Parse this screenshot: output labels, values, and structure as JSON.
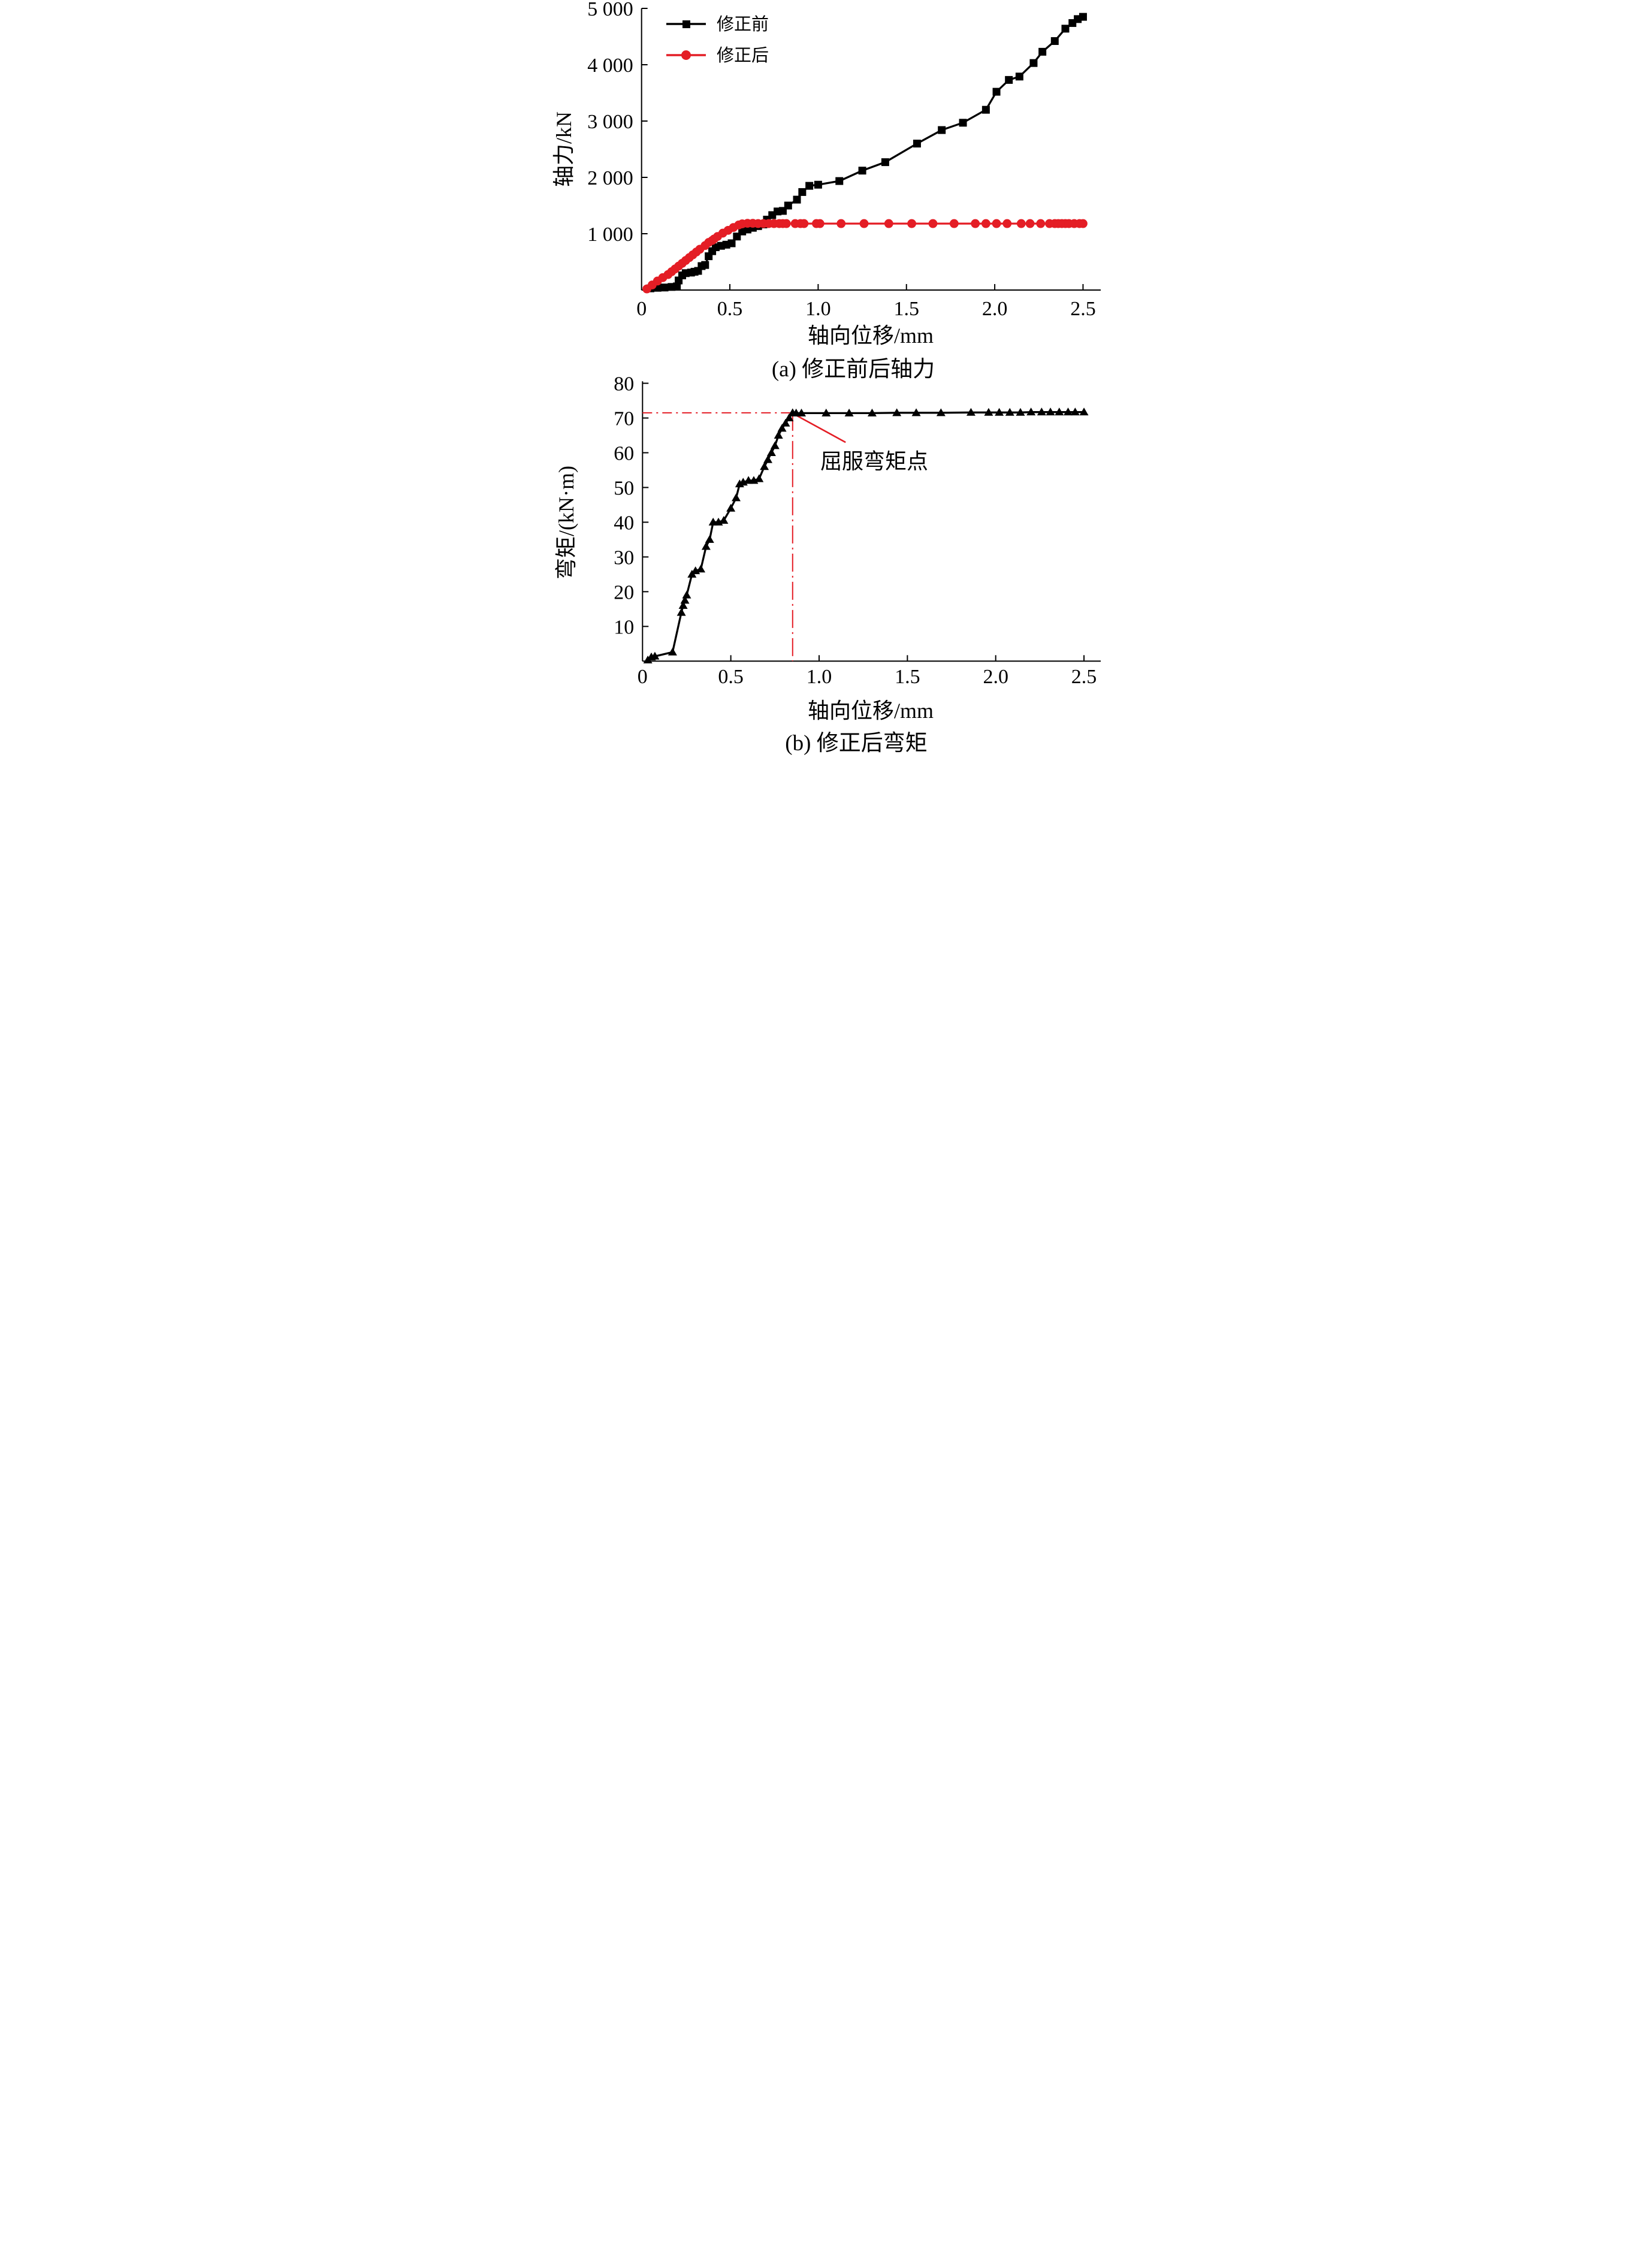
{
  "figure": {
    "background": "#ffffff",
    "series_black_color": "#000000",
    "series_red_color": "#e41d25"
  },
  "chart_data": [
    {
      "type": "line",
      "id": "axial-force",
      "caption": "(a) 修正前后轴力",
      "xlabel": "轴向位移/mm",
      "ylabel": "轴力/kN",
      "xlim": [
        0,
        2.6
      ],
      "ylim": [
        0,
        5000
      ],
      "grid": false,
      "legend_position": "top-left-inside",
      "x_ticks": [
        {
          "v": 0,
          "label": "0"
        },
        {
          "v": 0.5,
          "label": "0.5"
        },
        {
          "v": 1.0,
          "label": "1.0"
        },
        {
          "v": 1.5,
          "label": "1.5"
        },
        {
          "v": 2.0,
          "label": "2.0"
        },
        {
          "v": 2.5,
          "label": "2.5"
        }
      ],
      "y_ticks": [
        {
          "v": 1000,
          "label": "1 000"
        },
        {
          "v": 2000,
          "label": "2 000"
        },
        {
          "v": 3000,
          "label": "3 000"
        },
        {
          "v": 4000,
          "label": "4 000"
        },
        {
          "v": 5000,
          "label": "5 000"
        }
      ],
      "series": [
        {
          "name": "修正前",
          "color": "#000000",
          "marker": "square",
          "points": [
            [
              0.05,
              30
            ],
            [
              0.09,
              40
            ],
            [
              0.13,
              45
            ],
            [
              0.17,
              55
            ],
            [
              0.2,
              65
            ],
            [
              0.21,
              170
            ],
            [
              0.23,
              260
            ],
            [
              0.25,
              300
            ],
            [
              0.28,
              310
            ],
            [
              0.3,
              325
            ],
            [
              0.32,
              340
            ],
            [
              0.34,
              425
            ],
            [
              0.36,
              445
            ],
            [
              0.38,
              600
            ],
            [
              0.4,
              690
            ],
            [
              0.42,
              760
            ],
            [
              0.45,
              785
            ],
            [
              0.48,
              805
            ],
            [
              0.51,
              830
            ],
            [
              0.54,
              950
            ],
            [
              0.57,
              1040
            ],
            [
              0.6,
              1075
            ],
            [
              0.63,
              1105
            ],
            [
              0.66,
              1135
            ],
            [
              0.69,
              1165
            ],
            [
              0.71,
              1250
            ],
            [
              0.74,
              1330
            ],
            [
              0.77,
              1395
            ],
            [
              0.8,
              1405
            ],
            [
              0.83,
              1500
            ],
            [
              0.88,
              1605
            ],
            [
              0.91,
              1740
            ],
            [
              0.95,
              1850
            ],
            [
              1.0,
              1870
            ],
            [
              1.12,
              1935
            ],
            [
              1.25,
              2120
            ],
            [
              1.38,
              2270
            ],
            [
              1.56,
              2600
            ],
            [
              1.7,
              2840
            ],
            [
              1.82,
              2970
            ],
            [
              1.95,
              3200
            ],
            [
              2.01,
              3520
            ],
            [
              2.08,
              3730
            ],
            [
              2.14,
              3790
            ],
            [
              2.22,
              4030
            ],
            [
              2.27,
              4230
            ],
            [
              2.34,
              4420
            ],
            [
              2.4,
              4640
            ],
            [
              2.44,
              4740
            ],
            [
              2.47,
              4810
            ],
            [
              2.5,
              4850
            ]
          ]
        },
        {
          "name": "修正后",
          "color": "#e41d25",
          "marker": "circle",
          "points": [
            [
              0.03,
              20
            ],
            [
              0.06,
              90
            ],
            [
              0.09,
              160
            ],
            [
              0.12,
              220
            ],
            [
              0.15,
              275
            ],
            [
              0.17,
              325
            ],
            [
              0.19,
              375
            ],
            [
              0.21,
              425
            ],
            [
              0.23,
              475
            ],
            [
              0.25,
              525
            ],
            [
              0.27,
              575
            ],
            [
              0.29,
              625
            ],
            [
              0.31,
              675
            ],
            [
              0.33,
              725
            ],
            [
              0.36,
              790
            ],
            [
              0.38,
              845
            ],
            [
              0.4,
              880
            ],
            [
              0.41,
              905
            ],
            [
              0.43,
              950
            ],
            [
              0.46,
              1010
            ],
            [
              0.49,
              1060
            ],
            [
              0.52,
              1110
            ],
            [
              0.55,
              1155
            ],
            [
              0.57,
              1175
            ],
            [
              0.6,
              1185
            ],
            [
              0.63,
              1185
            ],
            [
              0.66,
              1180
            ],
            [
              0.69,
              1180
            ],
            [
              0.72,
              1180
            ],
            [
              0.75,
              1180
            ],
            [
              0.78,
              1180
            ],
            [
              0.8,
              1180
            ],
            [
              0.82,
              1180
            ],
            [
              0.87,
              1180
            ],
            [
              0.9,
              1180
            ],
            [
              0.92,
              1180
            ],
            [
              0.99,
              1180
            ],
            [
              1.01,
              1180
            ],
            [
              1.13,
              1180
            ],
            [
              1.26,
              1180
            ],
            [
              1.4,
              1180
            ],
            [
              1.53,
              1180
            ],
            [
              1.65,
              1180
            ],
            [
              1.77,
              1180
            ],
            [
              1.89,
              1180
            ],
            [
              1.95,
              1180
            ],
            [
              2.01,
              1180
            ],
            [
              2.07,
              1180
            ],
            [
              2.15,
              1180
            ],
            [
              2.2,
              1180
            ],
            [
              2.26,
              1180
            ],
            [
              2.31,
              1180
            ],
            [
              2.34,
              1180
            ],
            [
              2.36,
              1180
            ],
            [
              2.38,
              1180
            ],
            [
              2.4,
              1180
            ],
            [
              2.42,
              1180
            ],
            [
              2.45,
              1180
            ],
            [
              2.48,
              1180
            ],
            [
              2.5,
              1180
            ]
          ]
        }
      ]
    },
    {
      "type": "line",
      "id": "bending-moment",
      "caption": "(b) 修正后弯矩",
      "xlabel": "轴向位移/mm",
      "ylabel": "弯矩/(kN·m)",
      "xlim": [
        0,
        2.6
      ],
      "ylim": [
        0,
        80
      ],
      "grid": false,
      "x_ticks": [
        {
          "v": 0,
          "label": "0"
        },
        {
          "v": 0.5,
          "label": "0.5"
        },
        {
          "v": 1.0,
          "label": "1.0"
        },
        {
          "v": 1.5,
          "label": "1.5"
        },
        {
          "v": 2.0,
          "label": "2.0"
        },
        {
          "v": 2.5,
          "label": "2.5"
        }
      ],
      "y_ticks": [
        {
          "v": 10,
          "label": "10"
        },
        {
          "v": 20,
          "label": "20"
        },
        {
          "v": 30,
          "label": "30"
        },
        {
          "v": 40,
          "label": "40"
        },
        {
          "v": 50,
          "label": "50"
        },
        {
          "v": 60,
          "label": "60"
        },
        {
          "v": 70,
          "label": "70"
        },
        {
          "v": 80,
          "label": "80"
        }
      ],
      "series": [
        {
          "name": "修正后弯矩",
          "color": "#000000",
          "marker": "triangle",
          "points": [
            [
              0.03,
              0.3
            ],
            [
              0.05,
              1.2
            ],
            [
              0.07,
              1.4
            ],
            [
              0.17,
              2.6
            ],
            [
              0.22,
              14
            ],
            [
              0.23,
              16
            ],
            [
              0.24,
              17.5
            ],
            [
              0.25,
              19
            ],
            [
              0.28,
              25
            ],
            [
              0.3,
              26
            ],
            [
              0.33,
              26.5
            ],
            [
              0.36,
              33
            ],
            [
              0.38,
              35
            ],
            [
              0.4,
              40
            ],
            [
              0.43,
              40
            ],
            [
              0.46,
              40.5
            ],
            [
              0.5,
              44
            ],
            [
              0.53,
              47
            ],
            [
              0.55,
              51
            ],
            [
              0.57,
              51.5
            ],
            [
              0.6,
              52
            ],
            [
              0.63,
              52
            ],
            [
              0.66,
              52.5
            ],
            [
              0.69,
              56
            ],
            [
              0.71,
              58
            ],
            [
              0.73,
              60
            ],
            [
              0.75,
              62
            ],
            [
              0.77,
              65
            ],
            [
              0.79,
              67
            ],
            [
              0.81,
              68.5
            ],
            [
              0.83,
              70
            ],
            [
              0.85,
              71.5
            ],
            [
              0.87,
              71.4
            ],
            [
              0.9,
              71.4
            ],
            [
              1.04,
              71.4
            ],
            [
              1.17,
              71.4
            ],
            [
              1.3,
              71.4
            ],
            [
              1.44,
              71.5
            ],
            [
              1.55,
              71.5
            ],
            [
              1.69,
              71.5
            ],
            [
              1.86,
              71.6
            ],
            [
              1.96,
              71.6
            ],
            [
              2.02,
              71.6
            ],
            [
              2.08,
              71.6
            ],
            [
              2.14,
              71.6
            ],
            [
              2.2,
              71.7
            ],
            [
              2.26,
              71.7
            ],
            [
              2.31,
              71.7
            ],
            [
              2.36,
              71.7
            ],
            [
              2.41,
              71.7
            ],
            [
              2.45,
              71.7
            ],
            [
              2.5,
              71.7
            ]
          ]
        }
      ],
      "annotation": {
        "label": "屈服弯矩点",
        "color": "#e41d25",
        "yield_point": [
          0.85,
          71.5
        ],
        "hline_y": 71.5,
        "vline_x": 0.85,
        "leader_end": [
          1.15,
          63
        ]
      }
    }
  ]
}
